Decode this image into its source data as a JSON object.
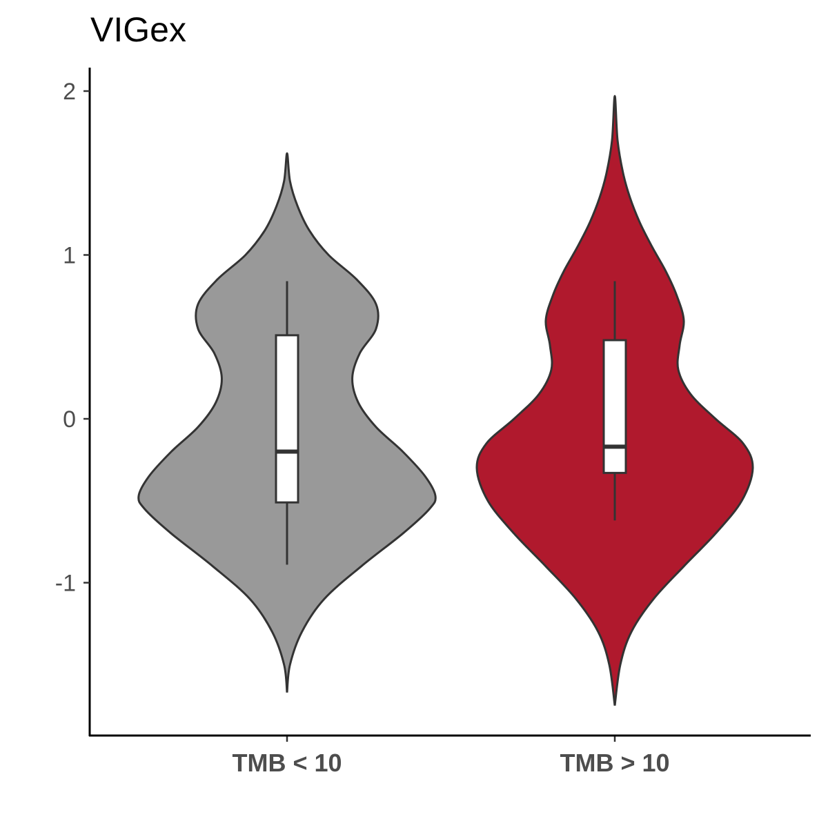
{
  "chart_data": {
    "type": "violin",
    "title": "VIGex",
    "xlabel": "",
    "ylabel": "",
    "ylim": [
      -1.95,
      2.15
    ],
    "yticks": [
      -1,
      0,
      1,
      2
    ],
    "ytick_labels": [
      "-1",
      "0",
      "1",
      "2"
    ],
    "categories": [
      "TMB < 10",
      "TMB > 10"
    ],
    "grid": false,
    "legend": "none",
    "groups": [
      {
        "category": "TMB < 10",
        "color": "#999999",
        "min": -1.67,
        "max": 1.62,
        "box": {
          "whisker_low": -0.89,
          "q1": -0.51,
          "median": -0.2,
          "q3": 0.51,
          "whisker_high": 0.84
        },
        "density": [
          [
            -1.67,
            0.0
          ],
          [
            -1.5,
            0.02
          ],
          [
            -1.3,
            0.1
          ],
          [
            -1.1,
            0.25
          ],
          [
            -0.9,
            0.5
          ],
          [
            -0.7,
            0.78
          ],
          [
            -0.55,
            0.96
          ],
          [
            -0.47,
            1.0
          ],
          [
            -0.35,
            0.93
          ],
          [
            -0.2,
            0.78
          ],
          [
            -0.05,
            0.6
          ],
          [
            0.1,
            0.48
          ],
          [
            0.25,
            0.44
          ],
          [
            0.4,
            0.49
          ],
          [
            0.55,
            0.6
          ],
          [
            0.7,
            0.6
          ],
          [
            0.85,
            0.47
          ],
          [
            1.0,
            0.28
          ],
          [
            1.15,
            0.15
          ],
          [
            1.3,
            0.07
          ],
          [
            1.45,
            0.02
          ],
          [
            1.62,
            0.0
          ]
        ]
      },
      {
        "category": "TMB > 10",
        "color": "#B0192D",
        "min": -1.75,
        "max": 1.97,
        "box": {
          "whisker_low": -0.62,
          "q1": -0.33,
          "median": -0.17,
          "q3": 0.48,
          "whisker_high": 0.84
        },
        "density": [
          [
            -1.75,
            0.0
          ],
          [
            -1.5,
            0.04
          ],
          [
            -1.3,
            0.12
          ],
          [
            -1.1,
            0.28
          ],
          [
            -0.9,
            0.5
          ],
          [
            -0.7,
            0.73
          ],
          [
            -0.5,
            0.92
          ],
          [
            -0.3,
            1.0
          ],
          [
            -0.15,
            0.93
          ],
          [
            0.0,
            0.73
          ],
          [
            0.15,
            0.55
          ],
          [
            0.3,
            0.46
          ],
          [
            0.45,
            0.47
          ],
          [
            0.6,
            0.5
          ],
          [
            0.75,
            0.45
          ],
          [
            0.9,
            0.37
          ],
          [
            1.05,
            0.27
          ],
          [
            1.2,
            0.18
          ],
          [
            1.35,
            0.11
          ],
          [
            1.5,
            0.06
          ],
          [
            1.7,
            0.02
          ],
          [
            1.97,
            0.0
          ]
        ]
      }
    ]
  }
}
